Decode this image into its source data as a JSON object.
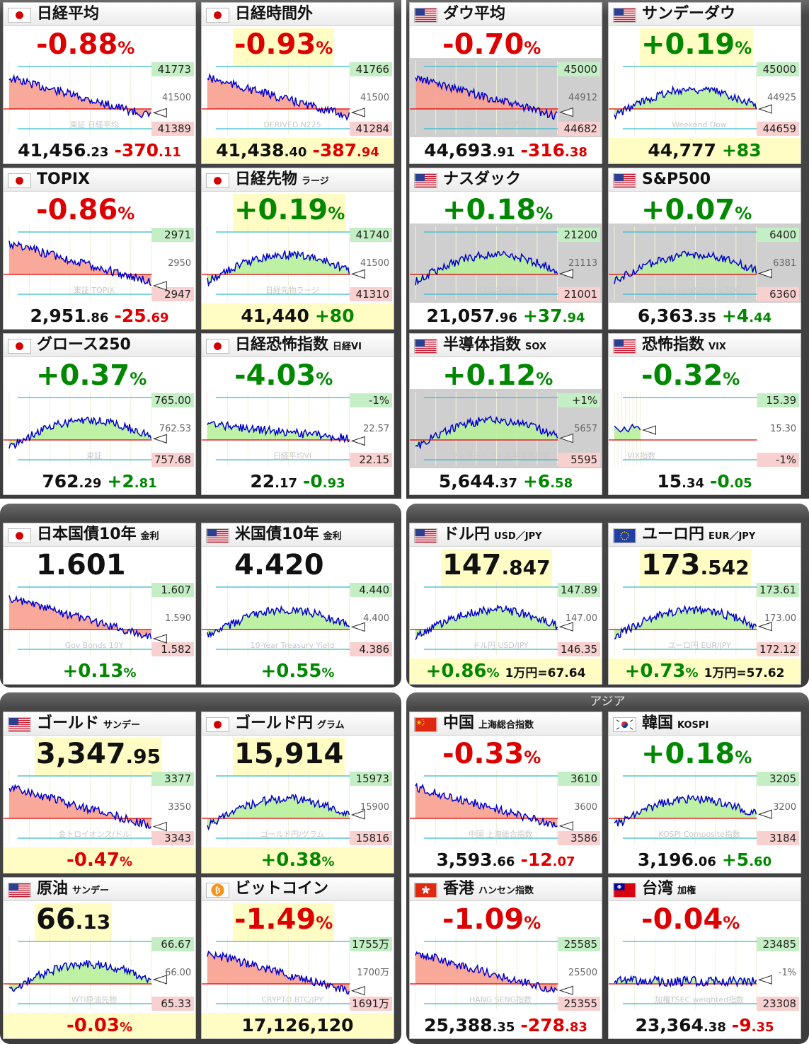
{
  "regions": {
    "asia_label": "アジア"
  },
  "colors": {
    "up": "#008800",
    "down": "#dd0000",
    "up_fill": "#b8f09a",
    "down_fill": "#f8a08e",
    "line": "#0000cc",
    "highlight": "#fffcc4",
    "panel": "#3c3c3c"
  },
  "cards": [
    {
      "id": "nikkei",
      "flag": "jp",
      "name": "日経平均",
      "sub": "",
      "big": {
        "main": "-0.88",
        "frac": "",
        "pct": "%",
        "color": "neg",
        "hl": false
      },
      "foot": {
        "type": "price",
        "p1": "41,456",
        "p2": ".23",
        "c1": "-370",
        "c2": ".11",
        "cc": "neg",
        "y": false
      },
      "chart": {
        "trend": "down",
        "labels": [
          "41773",
          "41500",
          "41389"
        ],
        "watermark": "東証 日経平均"
      }
    },
    {
      "id": "nikkei-ah",
      "flag": "jp",
      "name": "日経時間外",
      "sub": "",
      "big": {
        "main": "-0.93",
        "frac": "",
        "pct": "%",
        "color": "neg",
        "hl": true
      },
      "foot": {
        "type": "price",
        "p1": "41,438",
        "p2": ".40",
        "c1": "-387",
        "c2": ".94",
        "cc": "neg",
        "y": true
      },
      "chart": {
        "trend": "down",
        "labels": [
          "41766",
          "41500",
          "41284"
        ],
        "watermark": "DERIVED N225"
      }
    },
    {
      "id": "dow",
      "flag": "us",
      "name": "ダウ平均",
      "sub": "",
      "big": {
        "main": "-0.70",
        "frac": "",
        "pct": "%",
        "color": "neg",
        "hl": false
      },
      "foot": {
        "type": "price",
        "p1": "44,693",
        "p2": ".91",
        "c1": "-316",
        "c2": ".38",
        "cc": "neg",
        "y": false
      },
      "chart": {
        "trend": "down",
        "gray": true,
        "labels": [
          "45000",
          "44912",
          "44682"
        ],
        "watermark": "ニューヨークダウ30"
      }
    },
    {
      "id": "sunday-dow",
      "flag": "us",
      "name": "サンデーダウ",
      "sub": "",
      "big": {
        "main": "+0.19",
        "frac": "",
        "pct": "%",
        "color": "pos",
        "hl": true
      },
      "foot": {
        "type": "price",
        "p1": "44,777",
        "p2": "",
        "c1": "+83",
        "c2": "",
        "cc": "pos",
        "y": true
      },
      "chart": {
        "trend": "up",
        "labels": [
          "45000",
          "44925",
          "44659"
        ],
        "watermark": "Weekend Dow"
      }
    },
    {
      "id": "topix",
      "flag": "jp",
      "name": "TOPIX",
      "sub": "",
      "big": {
        "main": "-0.86",
        "frac": "",
        "pct": "%",
        "color": "neg",
        "hl": false
      },
      "foot": {
        "type": "price",
        "p1": "2,951",
        "p2": ".86",
        "c1": "-25",
        "c2": ".69",
        "cc": "neg",
        "y": false
      },
      "chart": {
        "trend": "down",
        "labels": [
          "2971",
          "2950",
          "2947"
        ],
        "watermark": "東証 TOPIX"
      }
    },
    {
      "id": "nikkei-fut",
      "flag": "jp",
      "name": "日経先物",
      "sub": "ラージ",
      "big": {
        "main": "+0.19",
        "frac": "",
        "pct": "%",
        "color": "pos",
        "hl": true
      },
      "foot": {
        "type": "price",
        "p1": "41,440",
        "p2": "",
        "c1": "+80",
        "c2": "",
        "cc": "pos",
        "y": true
      },
      "chart": {
        "trend": "up",
        "labels": [
          "41740",
          "41500",
          "41310"
        ],
        "watermark": "日経先物ラージ"
      }
    },
    {
      "id": "nasdaq",
      "flag": "us",
      "name": "ナスダック",
      "sub": "",
      "big": {
        "main": "+0.18",
        "frac": "",
        "pct": "%",
        "color": "pos",
        "hl": false
      },
      "foot": {
        "type": "price",
        "p1": "21,057",
        "p2": ".96",
        "c1": "+37",
        "c2": ".94",
        "cc": "pos",
        "y": false
      },
      "chart": {
        "trend": "up",
        "gray": true,
        "labels": [
          "21200",
          "21113",
          "21001"
        ],
        "watermark": "NASDAQ指数"
      }
    },
    {
      "id": "sp500",
      "flag": "us",
      "name": "S&P500",
      "sub": "",
      "big": {
        "main": "+0.07",
        "frac": "",
        "pct": "%",
        "color": "pos",
        "hl": false
      },
      "foot": {
        "type": "price",
        "p1": "6,363",
        "p2": ".35",
        "c1": "+4",
        "c2": ".44",
        "cc": "pos",
        "y": false
      },
      "chart": {
        "trend": "up",
        "gray": true,
        "labels": [
          "6400",
          "6381",
          "6360"
        ],
        "watermark": "Standard&Poor's 500"
      }
    },
    {
      "id": "growth250",
      "flag": "jp",
      "name": "グロース250",
      "sub": "",
      "big": {
        "main": "+0.37",
        "frac": "",
        "pct": "%",
        "color": "pos",
        "hl": false
      },
      "foot": {
        "type": "price",
        "p1": "762",
        "p2": ".29",
        "c1": "+2",
        "c2": ".81",
        "cc": "pos",
        "y": false
      },
      "chart": {
        "trend": "up",
        "labels": [
          "765.00",
          "762.53",
          "757.68"
        ],
        "watermark": "東証"
      }
    },
    {
      "id": "nikkei-vi",
      "flag": "jp",
      "name": "日経恐怖指数",
      "sub": "日経VI",
      "big": {
        "main": "-4.03",
        "frac": "",
        "pct": "%",
        "color": "pos",
        "hl": false
      },
      "foot": {
        "type": "price",
        "p1": "22",
        "p2": ".17",
        "c1": "-0",
        "c2": ".93",
        "cc": "pos",
        "y": false
      },
      "chart": {
        "trend": "upfill",
        "labels": [
          "-1%",
          "22.57",
          "22.15"
        ],
        "watermark": "日経平均VI"
      }
    },
    {
      "id": "sox",
      "flag": "us",
      "name": "半導体指数",
      "sub": "SOX",
      "big": {
        "main": "+0.12",
        "frac": "",
        "pct": "%",
        "color": "pos",
        "hl": false
      },
      "foot": {
        "type": "price",
        "p1": "5,644",
        "p2": ".37",
        "c1": "+6",
        "c2": ".58",
        "cc": "pos",
        "y": false
      },
      "chart": {
        "trend": "up",
        "gray": true,
        "labels": [
          "+1%",
          "5657",
          "5595"
        ],
        "watermark": "フィラデルフィア半導体指数"
      }
    },
    {
      "id": "vix",
      "flag": "us",
      "name": "恐怖指数",
      "sub": "VIX",
      "big": {
        "main": "-0.32",
        "frac": "",
        "pct": "%",
        "color": "pos",
        "hl": false
      },
      "foot": {
        "type": "price",
        "p1": "15",
        "p2": ".34",
        "c1": "-0",
        "c2": ".05",
        "cc": "pos",
        "y": false
      },
      "chart": {
        "trend": "short",
        "labels": [
          "15.39",
          "15.30",
          "-1%"
        ],
        "watermark": "VIX指数"
      }
    },
    {
      "id": "jgb10",
      "flag": "jp",
      "name": "日本国債10年",
      "sub": "金利",
      "big": {
        "main": "1.601",
        "frac": "",
        "pct": "",
        "color": "blk",
        "hl": false
      },
      "foot": {
        "type": "pct",
        "p": "+0.13",
        "pc": "pos",
        "x": "",
        "y": false
      },
      "chart": {
        "trend": "down",
        "labels": [
          "1.607",
          "1.590",
          "1.582"
        ],
        "watermark": "Gov Bonds 10Y"
      }
    },
    {
      "id": "ust10",
      "flag": "us",
      "name": "米国債10年",
      "sub": "金利",
      "big": {
        "main": "4.420",
        "frac": "",
        "pct": "",
        "color": "blk",
        "hl": false
      },
      "foot": {
        "type": "pct",
        "p": "+0.55",
        "pc": "pos",
        "x": "",
        "y": false
      },
      "chart": {
        "trend": "up",
        "labels": [
          "4.440",
          "4.400",
          "4.386"
        ],
        "watermark": "10-Year Treasury Yield"
      }
    },
    {
      "id": "usdjpy",
      "flag": "us",
      "name": "ドル円",
      "sub": "USD／JPY",
      "big": {
        "main": "147",
        "frac": ".847",
        "pct": "",
        "color": "blk",
        "hl": true
      },
      "foot": {
        "type": "pct",
        "p": "+0.86",
        "pc": "pos",
        "x": "1万円=67.64",
        "y": true
      },
      "chart": {
        "trend": "up",
        "labels": [
          "147.89",
          "147.00",
          "146.35"
        ],
        "watermark": "ドル円 USD/JPY"
      }
    },
    {
      "id": "eurjpy",
      "flag": "eu",
      "name": "ユーロ円",
      "sub": "EUR／JPY",
      "big": {
        "main": "173",
        "frac": ".542",
        "pct": "",
        "color": "blk",
        "hl": true
      },
      "foot": {
        "type": "pct",
        "p": "+0.73",
        "pc": "pos",
        "x": "1万円=57.62",
        "y": true
      },
      "chart": {
        "trend": "up",
        "labels": [
          "173.61",
          "173.00",
          "172.12"
        ],
        "watermark": "ユーロ円 EUR/JPY"
      }
    },
    {
      "id": "gold",
      "flag": "us",
      "name": "ゴールド",
      "sub": "サンデー",
      "big": {
        "main": "3,347",
        "frac": ".95",
        "pct": "",
        "color": "blk",
        "hl": true
      },
      "foot": {
        "type": "pct",
        "p": "-0.47",
        "pc": "neg",
        "x": "",
        "y": true
      },
      "chart": {
        "trend": "down",
        "labels": [
          "3377",
          "3350",
          "3343"
        ],
        "watermark": "金トロイオンス/ドル"
      }
    },
    {
      "id": "gold-jpy",
      "flag": "jp",
      "name": "ゴールド円",
      "sub": "グラム",
      "big": {
        "main": "15,914",
        "frac": "",
        "pct": "",
        "color": "blk",
        "hl": true
      },
      "foot": {
        "type": "pct",
        "p": "+0.38",
        "pc": "pos",
        "x": "",
        "y": true
      },
      "chart": {
        "trend": "up",
        "labels": [
          "15973",
          "15900",
          "15816"
        ],
        "watermark": "ゴールド円/グラム"
      }
    },
    {
      "id": "china",
      "flag": "cn",
      "name": "中国",
      "sub": "上海総合指数",
      "big": {
        "main": "-0.33",
        "frac": "",
        "pct": "%",
        "color": "neg",
        "hl": false
      },
      "foot": {
        "type": "price",
        "p1": "3,593",
        "p2": ".66",
        "c1": "-12",
        "c2": ".07",
        "cc": "neg",
        "y": false
      },
      "chart": {
        "trend": "down",
        "labels": [
          "3610",
          "3600",
          "3586"
        ],
        "watermark": "中国 上海総合指数"
      }
    },
    {
      "id": "korea",
      "flag": "kr",
      "name": "韓国",
      "sub": "KOSPI",
      "big": {
        "main": "+0.18",
        "frac": "",
        "pct": "%",
        "color": "pos",
        "hl": false
      },
      "foot": {
        "type": "price",
        "p1": "3,196",
        "p2": ".06",
        "c1": "+5",
        "c2": ".60",
        "cc": "pos",
        "y": false
      },
      "chart": {
        "trend": "up",
        "labels": [
          "3205",
          "3200",
          "3184"
        ],
        "watermark": "KOSPI Composite指数"
      }
    },
    {
      "id": "oil",
      "flag": "us",
      "name": "原油",
      "sub": "サンデー",
      "big": {
        "main": "66",
        "frac": ".13",
        "pct": "",
        "color": "blk",
        "hl": true
      },
      "foot": {
        "type": "pct",
        "p": "-0.03",
        "pc": "neg",
        "x": "",
        "y": true
      },
      "chart": {
        "trend": "up",
        "labels": [
          "66.67",
          "66.00",
          "65.33"
        ],
        "watermark": "WTI原油先物"
      }
    },
    {
      "id": "bitcoin",
      "flag": "btc",
      "name": "ビットコイン",
      "sub": "",
      "big": {
        "main": "-1.49",
        "frac": "",
        "pct": "%",
        "color": "neg",
        "hl": true
      },
      "foot": {
        "type": "plain",
        "t": "17,126,120",
        "y": true
      },
      "chart": {
        "trend": "down",
        "labels": [
          "1755万",
          "1700万",
          "1691万"
        ],
        "watermark": "CRYPTO BTC/JPY"
      }
    },
    {
      "id": "hongkong",
      "flag": "hk",
      "name": "香港",
      "sub": "ハンセン指数",
      "big": {
        "main": "-1.09",
        "frac": "",
        "pct": "%",
        "color": "neg",
        "hl": false
      },
      "foot": {
        "type": "price",
        "p1": "25,388",
        "p2": ".35",
        "c1": "-278",
        "c2": ".83",
        "cc": "neg",
        "y": false
      },
      "chart": {
        "trend": "down",
        "labels": [
          "25585",
          "25500",
          "25355"
        ],
        "watermark": "HANG SENG指数"
      }
    },
    {
      "id": "taiwan",
      "flag": "tw",
      "name": "台湾",
      "sub": "加権",
      "big": {
        "main": "-0.04",
        "frac": "",
        "pct": "%",
        "color": "neg",
        "hl": false
      },
      "foot": {
        "type": "price",
        "p1": "23,364",
        "p2": ".38",
        "c1": "-9",
        "c2": ".35",
        "cc": "neg",
        "y": false
      },
      "chart": {
        "trend": "flat",
        "labels": [
          "23485",
          "-1%",
          "23308"
        ],
        "watermark": "加権TSEC weighted指数"
      }
    }
  ]
}
